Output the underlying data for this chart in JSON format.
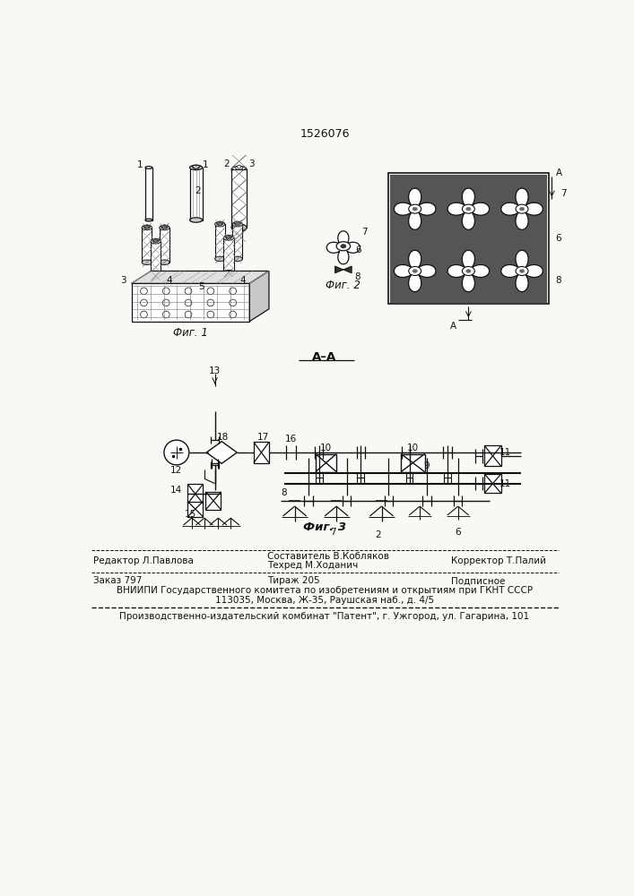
{
  "patent_number": "1526076",
  "bg": "#f8f8f4",
  "tc": "#111111",
  "footer": {
    "editor": "Редактор Л.Павлова",
    "comp1": "Составитель В.Кобляков",
    "comp2": "Техред М.Ходанич",
    "corrector": "Корректор Т.Палий",
    "order": "Заказ 797",
    "circ": "Тираж 205",
    "sub": "Подписное",
    "vn1": "ВНИИПИ Государственного комитета по изобретениям и открытиям при ГКНТ СССР",
    "vn2": "113035, Москва, Ж-35, Раушская наб., д. 4/5",
    "prod": "Производственно-издательский комбинат \"Патент\", г. Ужгород, ул. Гагарина, 101"
  }
}
